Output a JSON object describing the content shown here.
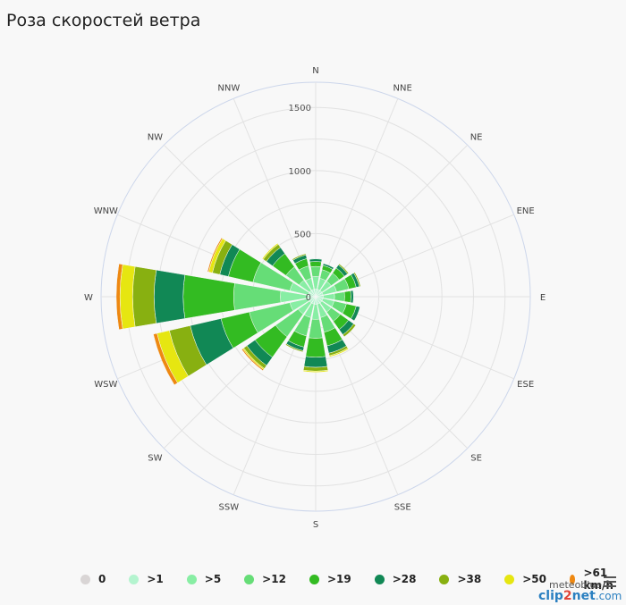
{
  "title": "Роза скоростей ветра",
  "brand": "meteoblue",
  "watermark": {
    "part1": "clip",
    "part2": "2",
    "part3": "net",
    "part4": ".com"
  },
  "chart_data": {
    "type": "wind-rose",
    "directions": [
      "N",
      "NNE",
      "NE",
      "ENE",
      "E",
      "ESE",
      "SE",
      "SSE",
      "S",
      "SSW",
      "SW",
      "WSW",
      "W",
      "WNW",
      "NW",
      "NNW"
    ],
    "radial_ticks": [
      0,
      500,
      1000,
      1500
    ],
    "radial_max": 1700,
    "speed_bins": [
      {
        "label": "0",
        "color": "#d9d5d5"
      },
      {
        "label": ">1",
        "color": "#b4f4cf"
      },
      {
        "label": ">5",
        "color": "#88eea4"
      },
      {
        "label": ">12",
        "color": "#66dd77"
      },
      {
        "label": ">19",
        "color": "#33bb22"
      },
      {
        "label": ">28",
        "color": "#118855"
      },
      {
        "label": ">38",
        "color": "#88b011"
      },
      {
        "label": ">50",
        "color": "#e6e611"
      },
      {
        "label": ">61 km/h",
        "color": "#ee8811"
      }
    ],
    "series_by_direction": {
      "N": [
        0,
        60,
        100,
        80,
        40,
        20,
        0,
        0,
        0
      ],
      "NNE": [
        0,
        60,
        90,
        70,
        35,
        15,
        0,
        0,
        0
      ],
      "NE": [
        0,
        60,
        90,
        80,
        50,
        30,
        10,
        0,
        0
      ],
      "ENE": [
        0,
        60,
        110,
        100,
        60,
        25,
        10,
        0,
        0
      ],
      "E": [
        0,
        60,
        90,
        80,
        50,
        20,
        0,
        0,
        0
      ],
      "ESE": [
        0,
        60,
        90,
        100,
        80,
        30,
        0,
        0,
        0
      ],
      "SE": [
        0,
        60,
        90,
        90,
        80,
        50,
        20,
        0,
        0
      ],
      "SSE": [
        0,
        60,
        110,
        120,
        110,
        60,
        20,
        10,
        0
      ],
      "S": [
        0,
        60,
        120,
        150,
        150,
        80,
        30,
        10,
        0
      ],
      "SSW": [
        0,
        60,
        110,
        150,
        90,
        30,
        10,
        0,
        0
      ],
      "SW": [
        0,
        60,
        110,
        220,
        200,
        80,
        30,
        10,
        10
      ],
      "WSW": [
        0,
        60,
        150,
        330,
        230,
        250,
        170,
        100,
        30
      ],
      "W": [
        0,
        60,
        220,
        370,
        400,
        230,
        170,
        100,
        30
      ],
      "WNW": [
        0,
        60,
        150,
        300,
        200,
        70,
        60,
        30,
        10
      ],
      "NW": [
        0,
        60,
        100,
        130,
        130,
        60,
        30,
        10,
        0
      ],
      "NNW": [
        0,
        60,
        90,
        100,
        60,
        30,
        10,
        0,
        0
      ]
    }
  }
}
